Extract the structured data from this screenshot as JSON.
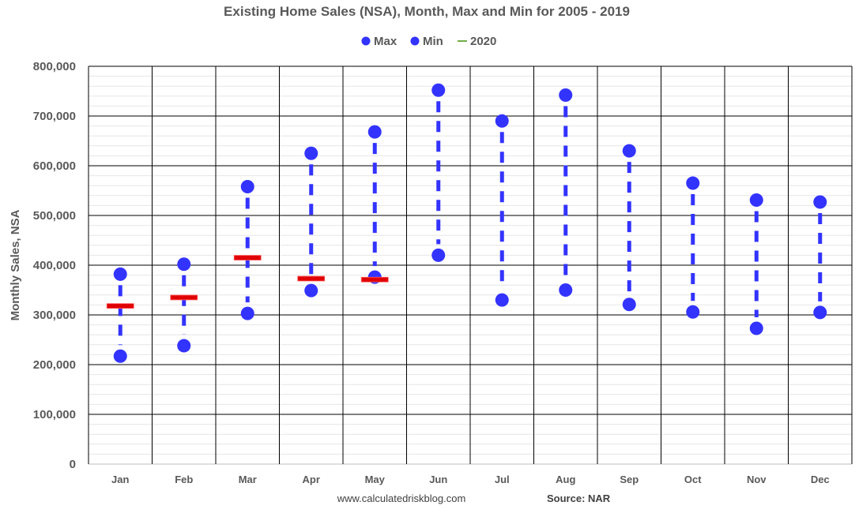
{
  "chart_data": {
    "type": "scatter",
    "title": "Existing Home Sales (NSA), Month, Max and Min for 2005 - 2019",
    "xlabel": "",
    "ylabel": "Monthly Sales, NSA",
    "ylim": [
      0,
      800000
    ],
    "yticks": [
      "0",
      "100,000",
      "200,000",
      "300,000",
      "400,000",
      "500,000",
      "600,000",
      "700,000",
      "800,000"
    ],
    "categories": [
      "Jan",
      "Feb",
      "Mar",
      "Apr",
      "May",
      "Jun",
      "Jul",
      "Aug",
      "Sep",
      "Oct",
      "Nov",
      "Dec"
    ],
    "legend_position": "top-center",
    "grid": true,
    "series": [
      {
        "name": "Max",
        "color": "#3333ff",
        "marker": "circle",
        "values": [
          382000,
          402000,
          558000,
          625000,
          668000,
          752000,
          690000,
          742000,
          630000,
          565000,
          531000,
          527000
        ]
      },
      {
        "name": "Min",
        "color": "#3333ff",
        "marker": "circle",
        "values": [
          217000,
          238000,
          303000,
          349000,
          376000,
          420000,
          330000,
          350000,
          321000,
          306000,
          273000,
          305000
        ]
      },
      {
        "name": "2020",
        "color": "#e00000",
        "legend_color": "#70ad47",
        "marker": "dash",
        "values": [
          318000,
          335000,
          415000,
          373000,
          371000,
          null,
          null,
          null,
          null,
          null,
          null,
          null
        ]
      }
    ]
  },
  "footer": {
    "website": "www.calculatedriskblog.com",
    "source": "Source: NAR"
  }
}
